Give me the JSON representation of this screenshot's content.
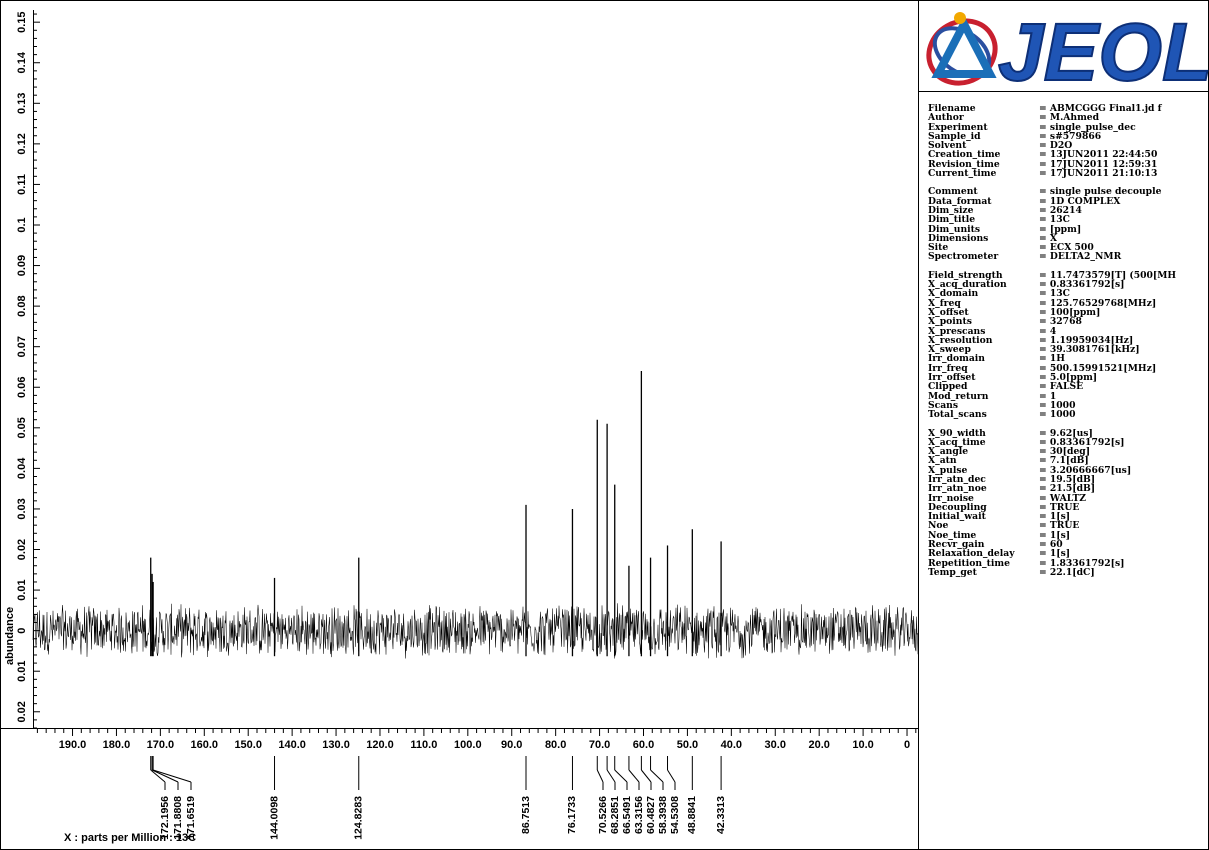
{
  "logo": {
    "text": "JEOL"
  },
  "params": [
    [
      [
        "Filename",
        "= ABMCGGG Final1.jd f"
      ],
      [
        "Author",
        "= M.Ahmed"
      ],
      [
        "Experiment",
        "= single_pulse_dec"
      ],
      [
        "Sample_id",
        "= s#579866"
      ],
      [
        "Solvent",
        "= D2O"
      ],
      [
        "Creation_time",
        "= 13JUN2011 22:44:50"
      ],
      [
        "Revision_time",
        "= 17JUN2011 12:59:31"
      ],
      [
        "Current_time",
        "= 17JUN2011 21:10:13"
      ]
    ],
    [
      [
        "Comment",
        "= single pulse decouple"
      ],
      [
        "Data_format",
        "= 1D COMPLEX"
      ],
      [
        "Dim_size",
        "= 26214"
      ],
      [
        "Dim_title",
        "= 13C"
      ],
      [
        "Dim_units",
        "= [ppm]"
      ],
      [
        "Dimensions",
        "= X"
      ],
      [
        "Site",
        "= ECX 500"
      ],
      [
        "Spectrometer",
        "= DELTA2_NMR"
      ]
    ],
    [
      [
        "Field_strength",
        "= 11.7473579[T] (500[MH"
      ],
      [
        "X_acq_duration",
        "= 0.83361792[s]"
      ],
      [
        "X_domain",
        "= 13C"
      ],
      [
        "X_freq",
        "= 125.76529768[MHz]"
      ],
      [
        "X_offset",
        "= 100[ppm]"
      ],
      [
        "X_points",
        "= 32768"
      ],
      [
        "X_prescans",
        "= 4"
      ],
      [
        "X_resolution",
        "= 1.19959034[Hz]"
      ],
      [
        "X_sweep",
        "= 39.3081761[kHz]"
      ],
      [
        "Irr_domain",
        "= 1H"
      ],
      [
        "Irr_freq",
        "= 500.15991521[MHz]"
      ],
      [
        "Irr_offset",
        "= 5.0[ppm]"
      ],
      [
        "Clipped",
        "= FALSE"
      ],
      [
        "Mod_return",
        "= 1"
      ],
      [
        "Scans",
        "= 1000"
      ],
      [
        "Total_scans",
        "= 1000"
      ]
    ],
    [
      [
        "X_90_width",
        "= 9.62[us]"
      ],
      [
        "X_acq_time",
        "= 0.83361792[s]"
      ],
      [
        "X_angle",
        "= 30[deg]"
      ],
      [
        "X_atn",
        "= 7.1[dB]"
      ],
      [
        "X_pulse",
        "= 3.20666667[us]"
      ],
      [
        "Irr_atn_dec",
        "= 19.5[dB]"
      ],
      [
        "Irr_atn_noe",
        "= 21.5[dB]"
      ],
      [
        "Irr_noise",
        "= WALTZ"
      ],
      [
        "Decoupling",
        "= TRUE"
      ],
      [
        "Initial_wait",
        "= 1[s]"
      ],
      [
        "Noe",
        "= TRUE"
      ],
      [
        "Noe_time",
        "= 1[s]"
      ],
      [
        "Recvr_gain",
        "= 60"
      ],
      [
        "Relaxation_delay",
        "= 1[s]"
      ],
      [
        "Repetition_time",
        "= 1.83361792[s]"
      ],
      [
        "Temp_get",
        "= 22.1[dC]"
      ]
    ]
  ],
  "chart_data": {
    "type": "line",
    "xlabel": "X : parts per Million : 13C",
    "ylabel": "abundance",
    "x_reversed": true,
    "xlim": [
      199.0,
      -2.5
    ],
    "ylim": [
      -0.024,
      0.153
    ],
    "x_ticks": [
      190.0,
      180.0,
      170.0,
      160.0,
      150.0,
      140.0,
      130.0,
      120.0,
      110.0,
      100.0,
      90.0,
      80.0,
      70.0,
      60.0,
      50.0,
      40.0,
      30.0,
      20.0,
      10.0,
      0
    ],
    "x_tick_labels": [
      "190.0",
      "180.0",
      "170.0",
      "160.0",
      "150.0",
      "140.0",
      "130.0",
      "120.0",
      "110.0",
      "100.0",
      "90.0",
      "80.0",
      "70.0",
      "60.0",
      "50.0",
      "40.0",
      "30.0",
      "20.0",
      "10.0",
      "0"
    ],
    "y_ticks": [
      0.15,
      0.14,
      0.13,
      0.12,
      0.11,
      0.1,
      0.09,
      0.08,
      0.07,
      0.06,
      0.05,
      0.04,
      0.03,
      0.02,
      0.01,
      0,
      -0.01,
      -0.02
    ],
    "y_tick_labels": [
      "0.15",
      "0.14",
      "0.13",
      "0.12",
      "0.11",
      "0.1",
      "0.09",
      "0.08",
      "0.07",
      "0.06",
      "0.05",
      "0.04",
      "0.03",
      "0.02",
      "0.01",
      "0",
      "0.01",
      "0.02"
    ],
    "noise_level": 0.007,
    "peaks": [
      {
        "ppm": 172.1956,
        "height": 0.018
      },
      {
        "ppm": 171.8808,
        "height": 0.014
      },
      {
        "ppm": 171.6519,
        "height": 0.012
      },
      {
        "ppm": 144.0098,
        "height": 0.013
      },
      {
        "ppm": 124.8283,
        "height": 0.018
      },
      {
        "ppm": 86.7513,
        "height": 0.031
      },
      {
        "ppm": 76.1733,
        "height": 0.03
      },
      {
        "ppm": 70.5266,
        "height": 0.052
      },
      {
        "ppm": 68.2851,
        "height": 0.051
      },
      {
        "ppm": 66.5491,
        "height": 0.036
      },
      {
        "ppm": 63.3156,
        "height": 0.016
      },
      {
        "ppm": 60.4827,
        "height": 0.064
      },
      {
        "ppm": 58.3938,
        "height": 0.018
      },
      {
        "ppm": 54.5308,
        "height": 0.021
      },
      {
        "ppm": 48.8841,
        "height": 0.025
      },
      {
        "ppm": 42.3313,
        "height": 0.022
      }
    ],
    "peak_labels": [
      "172.1956",
      "171.8808",
      "171.6519",
      "144.0098",
      "124.8283",
      "86.7513",
      "76.1733",
      "70.5266",
      "68.2851",
      "66.5491",
      "63.3156",
      "60.4827",
      "58.3938",
      "54.5308",
      "48.8841",
      "42.3313"
    ]
  }
}
